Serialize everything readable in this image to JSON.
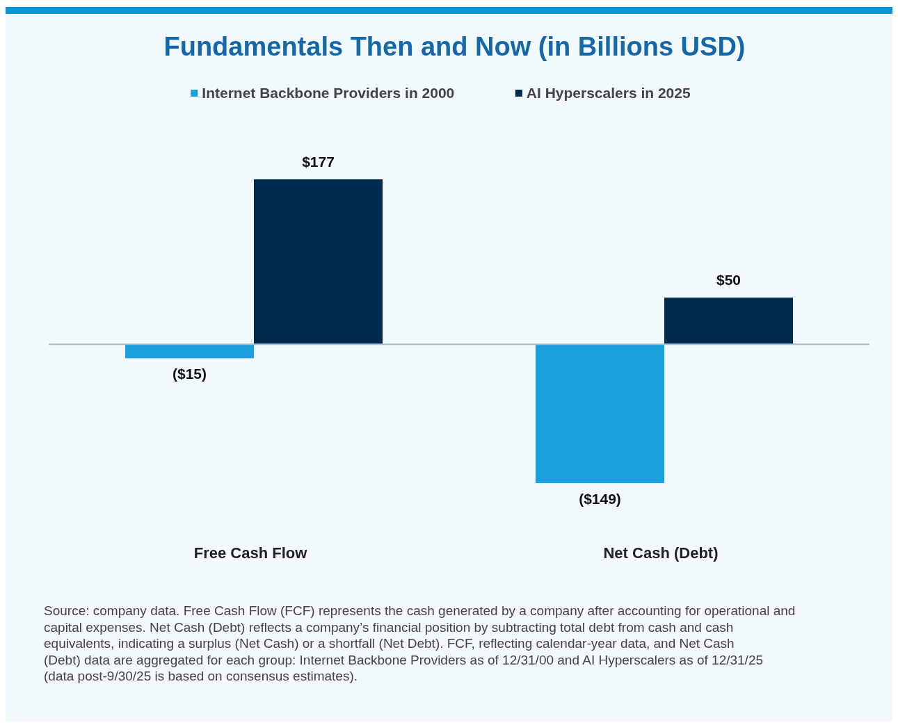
{
  "chart_data": {
    "type": "bar",
    "title": "Fundamentals Then and Now (in Billions USD)",
    "categories": [
      "Free Cash Flow",
      "Net Cash (Debt)"
    ],
    "series": [
      {
        "name": "Internet Backbone Providers in 2000",
        "color": "#1aa0dc",
        "values": [
          -15,
          -149
        ],
        "value_labels": [
          "($15)",
          "($149)"
        ]
      },
      {
        "name": "AI Hyperscalers in 2025",
        "color": "#002a4e",
        "values": [
          177,
          50
        ],
        "value_labels": [
          "$177",
          "$50"
        ]
      }
    ],
    "legend": "top",
    "tick_labels": "x",
    "annotations": [
      "Source: company data. Free Cash Flow (FCF) represents the cash generated by a company after accounting for operational and capital expenses. Net Cash (Debt) reflects a company’s financial position by subtracting total debt from cash and cash equivalents, indicating a surplus (Net Cash) or a shortfall (Net Debt). FCF, reflecting calendar-year data, and Net Cash (Debt) data are aggregated for each group: Internet Backbone Providers as of 12/31/00 and AI Hyperscalers as of 12/31/25 (data post-9/30/25 is based on consensus estimates)."
    ]
  }
}
